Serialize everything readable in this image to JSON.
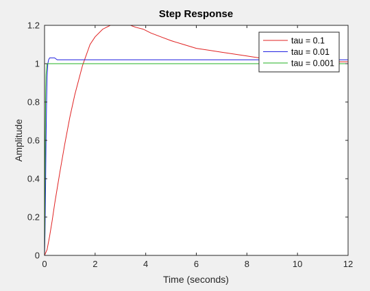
{
  "chart_data": {
    "type": "line",
    "title": "Step Response",
    "xlabel": "Time (seconds)",
    "ylabel": "Amplitude",
    "xlim": [
      0,
      12
    ],
    "ylim": [
      0,
      1.2
    ],
    "xticks": [
      0,
      2,
      4,
      6,
      8,
      10,
      12
    ],
    "yticks": [
      0,
      0.2,
      0.4,
      0.6,
      0.8,
      1,
      1.2
    ],
    "grid": false,
    "legend": "top-right",
    "series": [
      {
        "name": "tau = 0.1",
        "color": "#e02020",
        "x": [
          0,
          0.1,
          0.2,
          0.3,
          0.4,
          0.5,
          0.6,
          0.8,
          1.0,
          1.2,
          1.5,
          1.8,
          2.0,
          2.3,
          2.6,
          2.9,
          3.2,
          3.4,
          3.6,
          3.9,
          4.2,
          4.6,
          5.0,
          5.5,
          6.0,
          6.5,
          7.0,
          7.5,
          8.0,
          8.5,
          9.0,
          9.5,
          10.0,
          10.5,
          11.0,
          11.5,
          12.0
        ],
        "y": [
          0,
          0.03,
          0.1,
          0.18,
          0.27,
          0.35,
          0.43,
          0.58,
          0.72,
          0.84,
          0.99,
          1.1,
          1.14,
          1.18,
          1.2,
          1.2,
          1.2,
          1.2,
          1.19,
          1.18,
          1.16,
          1.14,
          1.12,
          1.1,
          1.08,
          1.07,
          1.06,
          1.05,
          1.04,
          1.03,
          1.03,
          1.03,
          1.02,
          1.02,
          1.02,
          1.01,
          1.01
        ]
      },
      {
        "name": "tau = 0.01",
        "color": "#2020e0",
        "x": [
          0,
          0.02,
          0.04,
          0.06,
          0.08,
          0.1,
          0.13,
          0.16,
          0.2,
          0.25,
          0.3,
          0.4,
          0.5,
          0.7,
          1.0,
          3.0,
          6.0,
          9.0,
          12.0
        ],
        "y": [
          0,
          0.12,
          0.35,
          0.6,
          0.8,
          0.93,
          1.0,
          1.02,
          1.03,
          1.03,
          1.03,
          1.03,
          1.02,
          1.02,
          1.02,
          1.02,
          1.02,
          1.02,
          1.02
        ]
      },
      {
        "name": "tau = 0.001",
        "color": "#20b020",
        "x": [
          0,
          0.01,
          0.02,
          0.03,
          0.04,
          0.05,
          0.06,
          0.08,
          0.1,
          0.2,
          0.5,
          1.0,
          3.0,
          6.0,
          9.0,
          12.0
        ],
        "y": [
          0,
          0.15,
          0.4,
          0.62,
          0.78,
          0.88,
          0.94,
          0.98,
          1.0,
          1.0,
          1.0,
          1.0,
          1.0,
          1.0,
          1.0,
          1.0
        ]
      }
    ]
  }
}
